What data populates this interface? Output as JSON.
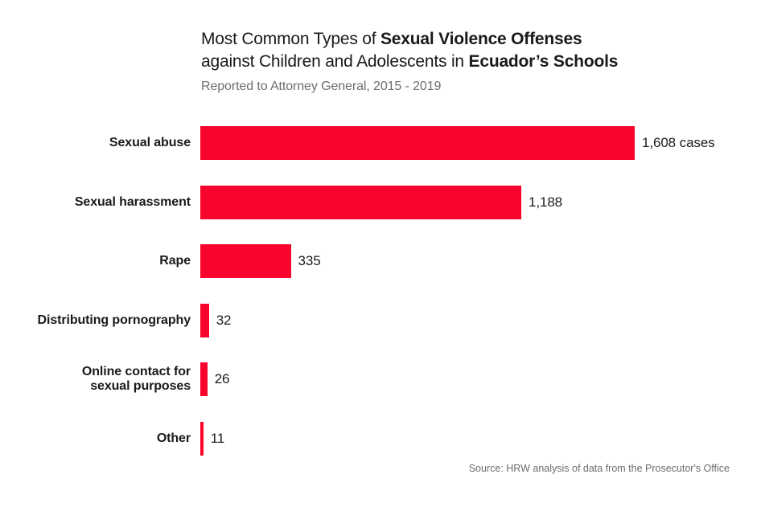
{
  "page": {
    "background": "#ffffff"
  },
  "header": {
    "title_line1_regular": "Most Common Types of ",
    "title_line1_bold": "Sexual Violence Offenses",
    "title_line2_regular": "against Children and Adolescents in ",
    "title_line2_bold": "Ecuador’s Schools",
    "subtitle": "Reported to Attorney General, 2015 - 2019"
  },
  "chart_data": {
    "type": "bar",
    "orientation": "horizontal",
    "title": "Most Common Types of Sexual Violence Offenses against Children and Adolescents in Ecuador’s Schools",
    "subtitle": "Reported to Attorney General, 2015 - 2019",
    "categories": [
      "Sexual abuse",
      "Sexual harassment",
      "Rape",
      "Distributing pornography",
      "Online contact for\nsexual purposes",
      "Other"
    ],
    "values": [
      1608,
      1188,
      335,
      32,
      26,
      11
    ],
    "value_labels": [
      "1,608 cases",
      "1,188",
      "335",
      "32",
      "26",
      "11"
    ],
    "unit": "cases",
    "xlabel": "",
    "ylabel": "",
    "xlim": [
      0,
      1608
    ],
    "grid": false,
    "legend": false,
    "bar_color": "#f8042c"
  },
  "footer": {
    "source": "Source: HRW analysis of data from the Prosecutor's Office"
  },
  "colors": {
    "bar_red": "#f8042c",
    "text_dark": "#1a1a1a",
    "text_gray": "#6d6d6d",
    "background": "#ffffff"
  }
}
